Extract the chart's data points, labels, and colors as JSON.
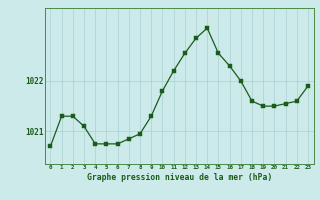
{
  "hours": [
    0,
    1,
    2,
    3,
    4,
    5,
    6,
    7,
    8,
    9,
    10,
    11,
    12,
    13,
    14,
    15,
    16,
    17,
    18,
    19,
    20,
    21,
    22,
    23
  ],
  "pressure": [
    1020.7,
    1021.3,
    1021.3,
    1021.1,
    1020.75,
    1020.75,
    1020.75,
    1020.85,
    1020.95,
    1021.3,
    1021.8,
    1022.2,
    1022.55,
    1022.85,
    1023.05,
    1022.55,
    1022.3,
    1022.0,
    1021.6,
    1021.5,
    1021.5,
    1021.55,
    1021.6,
    1021.9
  ],
  "line_color": "#1a5c1a",
  "marker_color": "#1a5c1a",
  "bg_color": "#cceaea",
  "grid_color": "#aacfcf",
  "xlabel": "Graphe pression niveau de la mer (hPa)",
  "xlabel_color": "#1a5c1a",
  "ytick_labels": [
    "1021",
    "1022"
  ],
  "ylim": [
    1020.35,
    1023.45
  ],
  "yticks": [
    1021.0,
    1022.0
  ],
  "border_color": "#4a8a4a",
  "xlim": [
    -0.5,
    23.5
  ]
}
